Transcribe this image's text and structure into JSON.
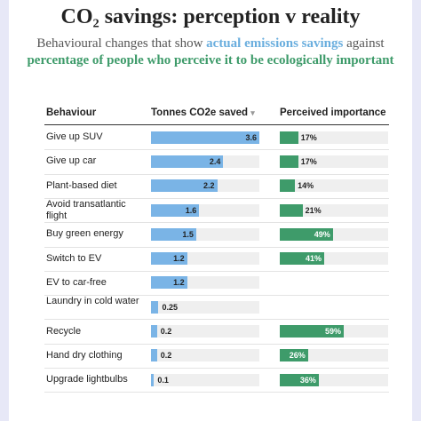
{
  "header": {
    "title": "CO₂ savings: perception v reality",
    "subtitle_pre": "Behavioural changes that show ",
    "subtitle_blue": "actual emissions savings",
    "subtitle_mid": " against ",
    "subtitle_green": "percentage of people who perceive it to be ecologically important"
  },
  "columns": {
    "behaviour": "Behaviour",
    "saved": "Tonnes CO2e saved",
    "sort_icon": "▾",
    "perceived": "Perceived importance"
  },
  "colors": {
    "saved_bar": "#7ab4e6",
    "perceived_bar": "#3e9b6a",
    "track": "#efefef"
  },
  "chart_data": {
    "type": "bar",
    "categories": [
      "Give up SUV",
      "Give up car",
      "Plant-based diet",
      "Avoid transatlantic flight",
      "Buy green energy",
      "Switch to EV",
      "EV to car-free",
      "Laundry in cold water",
      "Recycle",
      "Hand dry clothing",
      "Upgrade lightbulbs"
    ],
    "series": [
      {
        "name": "Tonnes CO2e saved",
        "values": [
          3.6,
          2.4,
          2.2,
          1.6,
          1.5,
          1.2,
          1.2,
          0.25,
          0.2,
          0.2,
          0.1
        ],
        "labels": [
          "3.6",
          "2.4",
          "2.2",
          "1.6",
          "1.5",
          "1.2",
          "1.2",
          "0.25",
          "0.2",
          "0.2",
          "0.1"
        ],
        "xlim": [
          0,
          3.6
        ]
      },
      {
        "name": "Perceived importance",
        "values": [
          17,
          17,
          14,
          21,
          49,
          41,
          null,
          null,
          59,
          26,
          36
        ],
        "labels": [
          "17%",
          "17%",
          "14%",
          "21%",
          "49%",
          "41%",
          "",
          "",
          "59%",
          "26%",
          "36%"
        ],
        "xlim": [
          0,
          100
        ]
      }
    ]
  }
}
